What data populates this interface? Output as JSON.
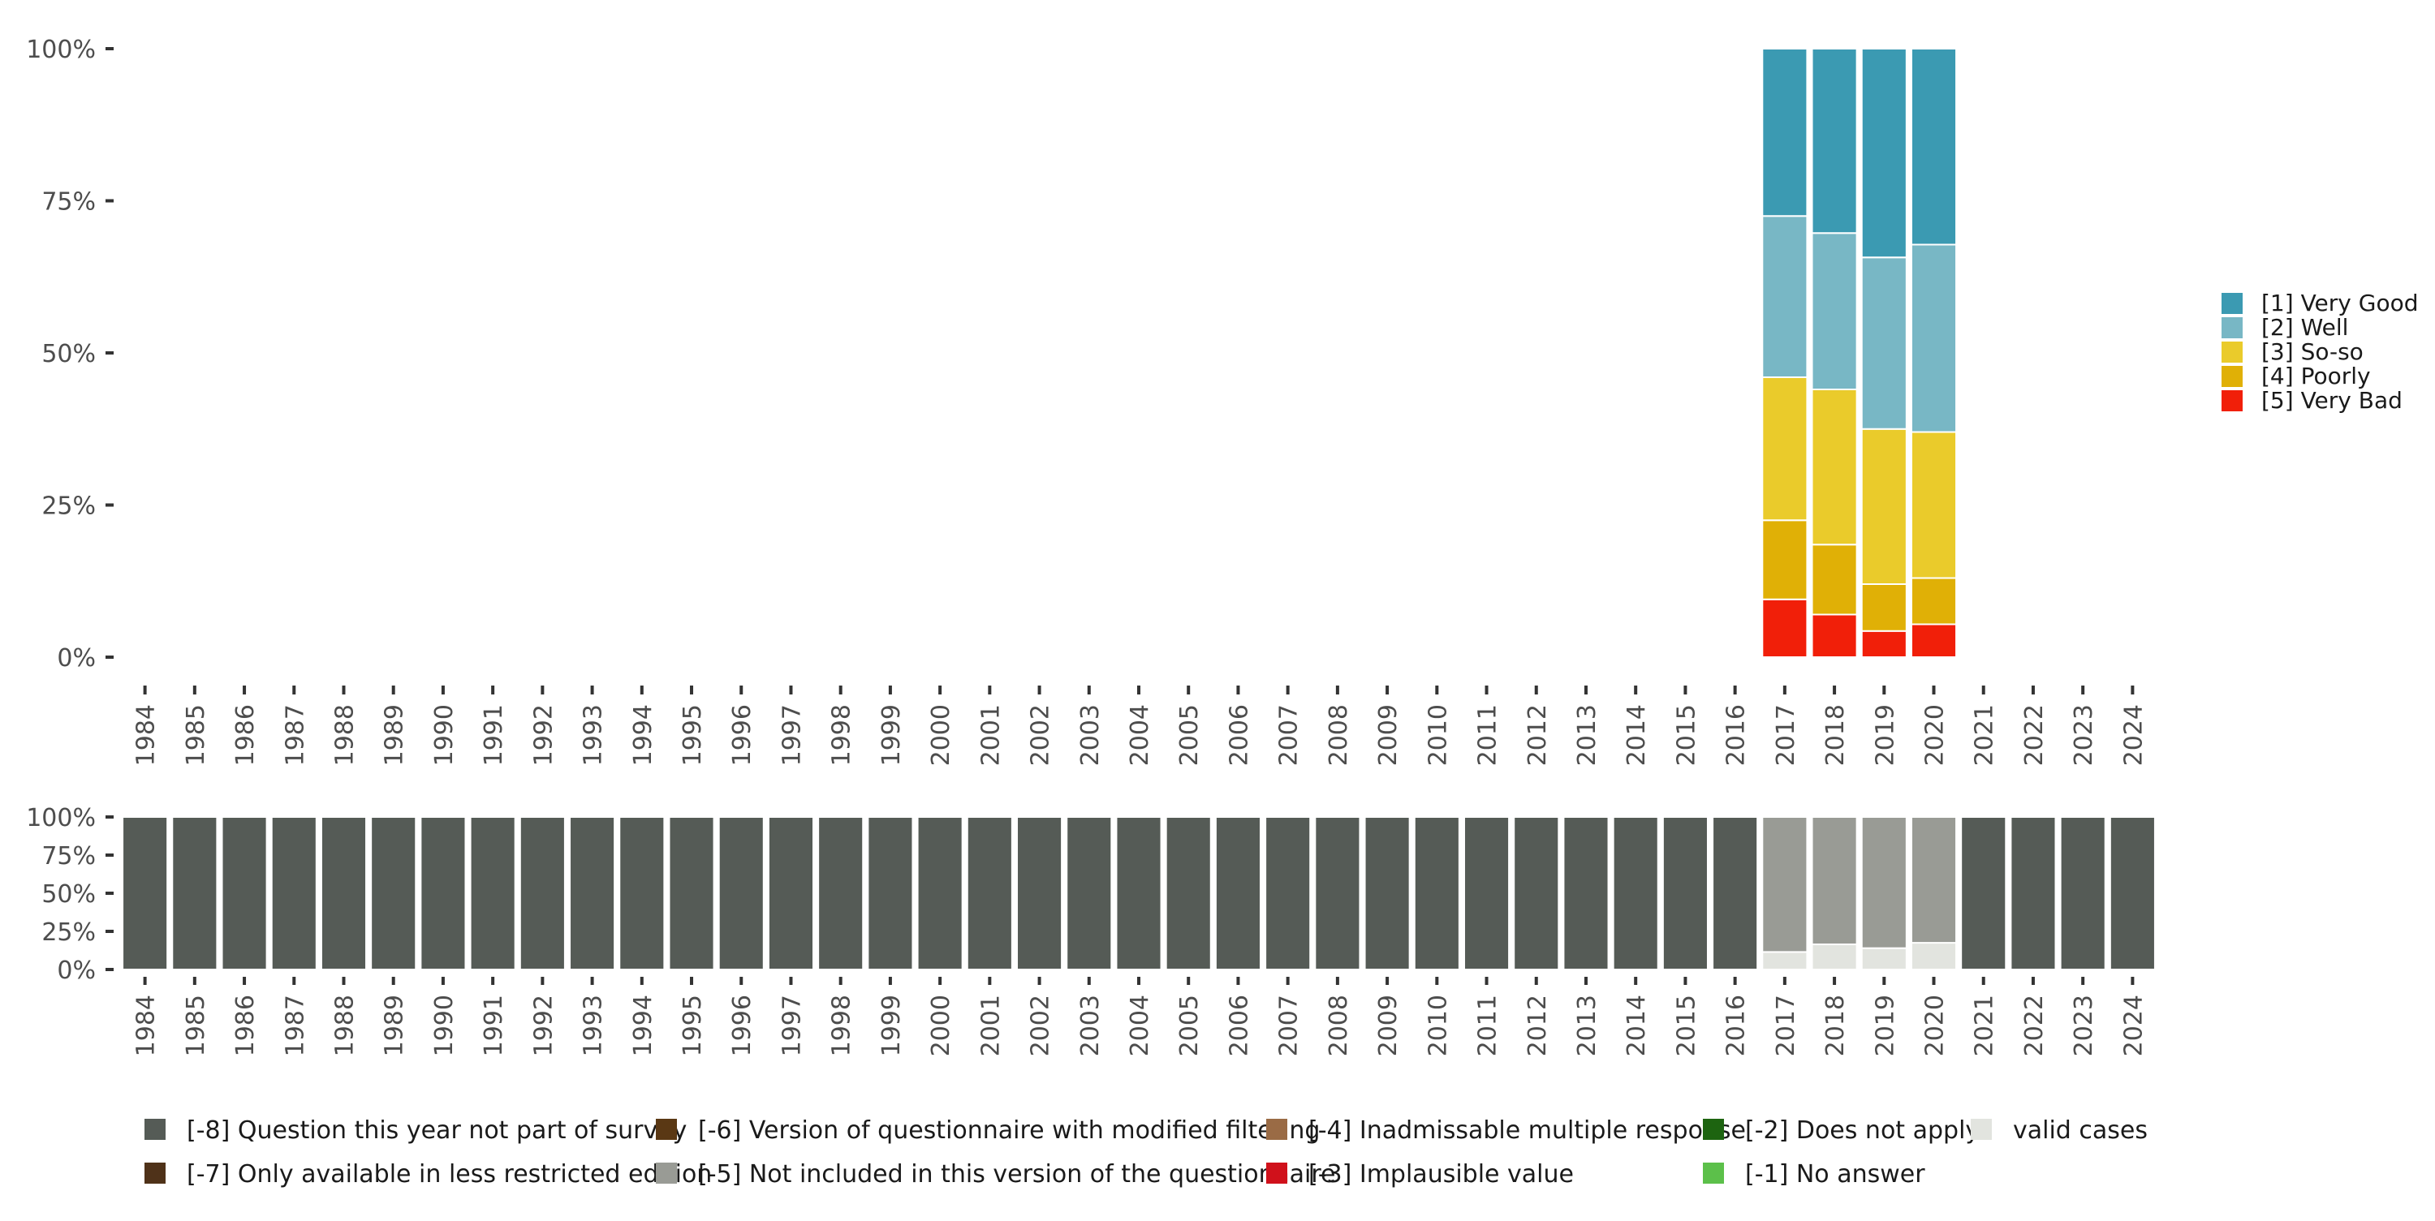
{
  "chart_data": [
    {
      "type": "bar",
      "stacked": true,
      "percent": true,
      "categories": [
        "1984",
        "1985",
        "1986",
        "1987",
        "1988",
        "1989",
        "1990",
        "1991",
        "1992",
        "1993",
        "1994",
        "1995",
        "1996",
        "1997",
        "1998",
        "1999",
        "2000",
        "2001",
        "2002",
        "2003",
        "2004",
        "2005",
        "2006",
        "2007",
        "2008",
        "2009",
        "2010",
        "2011",
        "2012",
        "2013",
        "2014",
        "2015",
        "2016",
        "2017",
        "2018",
        "2019",
        "2020",
        "2021",
        "2022",
        "2023",
        "2024"
      ],
      "ylim": [
        0,
        100
      ],
      "yticks": [
        "0%",
        "25%",
        "50%",
        "75%",
        "100%"
      ],
      "legend_position": "right",
      "series": [
        {
          "name": "[5] Very Bad",
          "color": "#f11f09",
          "values": {
            "2017": 9.5,
            "2018": 7,
            "2019": 4.3,
            "2020": 5.4
          }
        },
        {
          "name": "[4] Poorly",
          "color": "#e0b006",
          "values": {
            "2017": 13,
            "2018": 11.5,
            "2019": 7.7,
            "2020": 7.6
          }
        },
        {
          "name": "[3] So-so",
          "color": "#eacb2b",
          "values": {
            "2017": 23.5,
            "2018": 25.5,
            "2019": 25.5,
            "2020": 24
          }
        },
        {
          "name": "[2] Well",
          "color": "#78b7c5",
          "values": {
            "2017": 26.5,
            "2018": 25.7,
            "2019": 28.2,
            "2020": 30.8
          }
        },
        {
          "name": "[1] Very Good",
          "color": "#3b9ab2",
          "values": {
            "2017": 27.5,
            "2018": 30.3,
            "2019": 34.3,
            "2020": 32.2
          }
        }
      ],
      "legend": [
        "[1] Very Good",
        "[2] Well",
        "[3] So-so",
        "[4] Poorly",
        "[5] Very Bad"
      ]
    },
    {
      "type": "bar",
      "stacked": true,
      "percent": true,
      "categories": [
        "1984",
        "1985",
        "1986",
        "1987",
        "1988",
        "1989",
        "1990",
        "1991",
        "1992",
        "1993",
        "1994",
        "1995",
        "1996",
        "1997",
        "1998",
        "1999",
        "2000",
        "2001",
        "2002",
        "2003",
        "2004",
        "2005",
        "2006",
        "2007",
        "2008",
        "2009",
        "2010",
        "2011",
        "2012",
        "2013",
        "2014",
        "2015",
        "2016",
        "2017",
        "2018",
        "2019",
        "2020",
        "2021",
        "2022",
        "2023",
        "2024"
      ],
      "ylim": [
        0,
        100
      ],
      "yticks": [
        "0%",
        "25%",
        "50%",
        "75%",
        "100%"
      ],
      "legend_position": "bottom",
      "series": [
        {
          "name": "valid cases",
          "color": "#e2e4df",
          "values": {
            "2017": 11.5,
            "2018": 16.5,
            "2019": 14,
            "2020": 17.5
          }
        },
        {
          "name": "[-5] Not included in this version of the questionnaire",
          "color": "#999b95",
          "values": {
            "2017": 88.5,
            "2018": 83.5,
            "2019": 86,
            "2020": 82.5
          }
        },
        {
          "name": "[-8] Question this year not part of survey",
          "color": "#555b56",
          "values": {
            "1984": 100,
            "1985": 100,
            "1986": 100,
            "1987": 100,
            "1988": 100,
            "1989": 100,
            "1990": 100,
            "1991": 100,
            "1992": 100,
            "1993": 100,
            "1994": 100,
            "1995": 100,
            "1996": 100,
            "1997": 100,
            "1998": 100,
            "1999": 100,
            "2000": 100,
            "2001": 100,
            "2002": 100,
            "2003": 100,
            "2004": 100,
            "2005": 100,
            "2006": 100,
            "2007": 100,
            "2008": 100,
            "2009": 100,
            "2010": 100,
            "2011": 100,
            "2012": 100,
            "2013": 100,
            "2014": 100,
            "2015": 100,
            "2016": 100,
            "2021": 100,
            "2022": 100,
            "2023": 100,
            "2024": 100
          }
        }
      ],
      "legend": [
        {
          "label": "[-8] Question this year not part of survey",
          "color": "#555b56"
        },
        {
          "label": "[-7] Only available in less restricted edition",
          "color": "#4f3219"
        },
        {
          "label": "[-6] Version of questionnaire with modified filtering",
          "color": "#5a3814"
        },
        {
          "label": "[-5] Not included in this version of the questionnaire",
          "color": "#999b95"
        },
        {
          "label": "[-4] Inadmissable multiple response",
          "color": "#9a6b45"
        },
        {
          "label": "[-3] Implausible value",
          "color": "#d0111b"
        },
        {
          "label": "[-2] Does not apply",
          "color": "#1d6410"
        },
        {
          "label": "[-1] No answer",
          "color": "#5cc04a"
        },
        {
          "label": "valid cases",
          "color": "#e2e4df"
        }
      ]
    }
  ]
}
